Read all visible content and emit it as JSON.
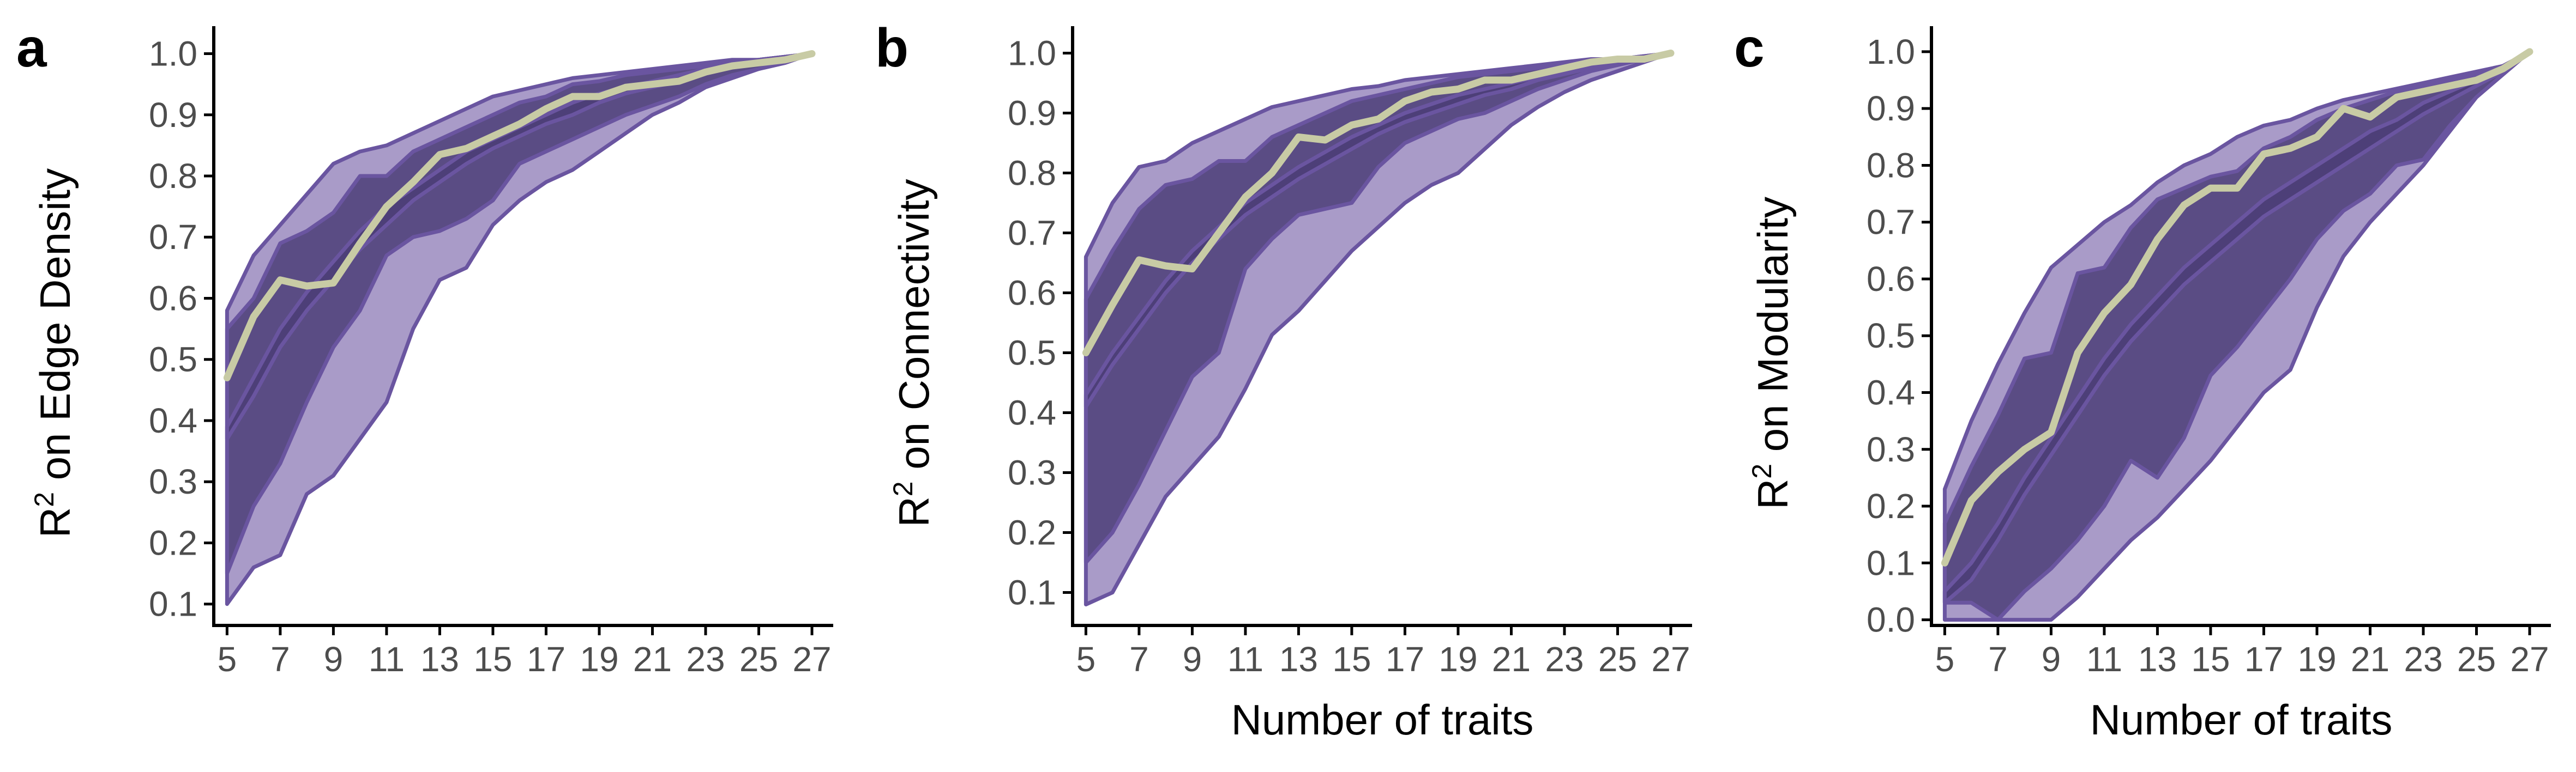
{
  "colors": {
    "outer_band": "#A99BC8",
    "inner_band": "#5A4C84",
    "center_band": "#4D3F78",
    "band_outline": "#6A55A0",
    "median_line": "#C8CBA5",
    "axis": "#000000",
    "tick_text": "#4d4d4d"
  },
  "chart_data": [
    {
      "panel_label": "a",
      "type": "area",
      "xlabel": "",
      "ylabel": "on Edge Density",
      "ylabel_prefix": "R",
      "ylabel_sup": "2",
      "xlim": [
        4.5,
        27.8
      ],
      "ylim": [
        0.065,
        1.045
      ],
      "x_ticks": [
        5,
        7,
        9,
        11,
        13,
        15,
        17,
        19,
        21,
        23,
        25,
        27
      ],
      "x_tick_labels": [
        "5",
        "7",
        "9",
        "11",
        "13",
        "15",
        "17",
        "19",
        "21",
        "23",
        "25",
        "27"
      ],
      "y_ticks": [
        0.1,
        0.2,
        0.3,
        0.4,
        0.5,
        0.6,
        0.7,
        0.8,
        0.9,
        1.0
      ],
      "y_tick_labels": [
        "0.1",
        "0.2",
        "0.3",
        "0.4",
        "0.5",
        "0.6",
        "0.7",
        "0.8",
        "0.9",
        "1.0"
      ],
      "x": [
        5,
        6,
        7,
        8,
        9,
        10,
        11,
        12,
        13,
        14,
        15,
        16,
        17,
        18,
        19,
        20,
        21,
        22,
        23,
        24,
        25,
        26,
        27
      ],
      "bands": [
        {
          "role": "outer",
          "upper": [
            0.58,
            0.67,
            0.72,
            0.77,
            0.82,
            0.84,
            0.85,
            0.87,
            0.89,
            0.91,
            0.93,
            0.94,
            0.95,
            0.96,
            0.965,
            0.97,
            0.975,
            0.98,
            0.985,
            0.99,
            0.99,
            0.995,
            1.0
          ],
          "lower": [
            0.1,
            0.16,
            0.18,
            0.28,
            0.31,
            0.37,
            0.43,
            0.55,
            0.63,
            0.65,
            0.72,
            0.76,
            0.79,
            0.81,
            0.84,
            0.87,
            0.9,
            0.92,
            0.945,
            0.96,
            0.975,
            0.985,
            1.0
          ]
        },
        {
          "role": "inner",
          "upper": [
            0.55,
            0.6,
            0.69,
            0.71,
            0.74,
            0.8,
            0.8,
            0.84,
            0.86,
            0.88,
            0.9,
            0.92,
            0.93,
            0.95,
            0.955,
            0.965,
            0.97,
            0.975,
            0.98,
            0.985,
            0.99,
            0.995,
            1.0
          ],
          "lower": [
            0.15,
            0.26,
            0.33,
            0.43,
            0.52,
            0.58,
            0.67,
            0.7,
            0.71,
            0.73,
            0.76,
            0.82,
            0.84,
            0.86,
            0.88,
            0.9,
            0.915,
            0.93,
            0.95,
            0.965,
            0.975,
            0.985,
            1.0
          ]
        },
        {
          "role": "center",
          "upper": [
            0.39,
            0.47,
            0.55,
            0.61,
            0.66,
            0.71,
            0.75,
            0.78,
            0.81,
            0.84,
            0.86,
            0.88,
            0.9,
            0.92,
            0.935,
            0.945,
            0.955,
            0.965,
            0.975,
            0.985,
            0.99,
            0.995,
            1.0
          ],
          "lower": [
            0.37,
            0.44,
            0.52,
            0.58,
            0.63,
            0.68,
            0.72,
            0.76,
            0.79,
            0.82,
            0.845,
            0.865,
            0.885,
            0.9,
            0.92,
            0.935,
            0.945,
            0.955,
            0.97,
            0.98,
            0.985,
            0.99,
            1.0
          ]
        }
      ],
      "median": [
        0.47,
        0.57,
        0.63,
        0.62,
        0.625,
        0.69,
        0.75,
        0.79,
        0.835,
        0.845,
        0.865,
        0.885,
        0.91,
        0.93,
        0.93,
        0.945,
        0.95,
        0.955,
        0.97,
        0.98,
        0.985,
        0.99,
        1.0
      ]
    },
    {
      "panel_label": "b",
      "type": "area",
      "xlabel": "Number of traits",
      "ylabel": "on Connectivity",
      "ylabel_prefix": "R",
      "ylabel_sup": "2",
      "xlim": [
        4.5,
        27.8
      ],
      "ylim": [
        0.045,
        1.045
      ],
      "x_ticks": [
        5,
        7,
        9,
        11,
        13,
        15,
        17,
        19,
        21,
        23,
        25,
        27
      ],
      "x_tick_labels": [
        "5",
        "7",
        "9",
        "11",
        "13",
        "15",
        "17",
        "19",
        "21",
        "23",
        "25",
        "27"
      ],
      "y_ticks": [
        0.1,
        0.2,
        0.3,
        0.4,
        0.5,
        0.6,
        0.7,
        0.8,
        0.9,
        1.0
      ],
      "y_tick_labels": [
        "0.1",
        "0.2",
        "0.3",
        "0.4",
        "0.5",
        "0.6",
        "0.7",
        "0.8",
        "0.9",
        "1.0"
      ],
      "x": [
        5,
        6,
        7,
        8,
        9,
        10,
        11,
        12,
        13,
        14,
        15,
        16,
        17,
        18,
        19,
        20,
        21,
        22,
        23,
        24,
        25,
        26,
        27
      ],
      "bands": [
        {
          "role": "outer",
          "upper": [
            0.66,
            0.75,
            0.81,
            0.82,
            0.85,
            0.87,
            0.89,
            0.91,
            0.92,
            0.93,
            0.94,
            0.945,
            0.955,
            0.96,
            0.965,
            0.97,
            0.975,
            0.98,
            0.985,
            0.99,
            0.99,
            0.995,
            1.0
          ],
          "lower": [
            0.08,
            0.1,
            0.18,
            0.26,
            0.31,
            0.36,
            0.44,
            0.53,
            0.57,
            0.62,
            0.67,
            0.71,
            0.75,
            0.78,
            0.8,
            0.84,
            0.88,
            0.91,
            0.935,
            0.955,
            0.97,
            0.985,
            1.0
          ]
        },
        {
          "role": "inner",
          "upper": [
            0.59,
            0.67,
            0.74,
            0.78,
            0.79,
            0.82,
            0.82,
            0.86,
            0.88,
            0.9,
            0.92,
            0.93,
            0.94,
            0.95,
            0.96,
            0.965,
            0.97,
            0.975,
            0.98,
            0.985,
            0.99,
            0.995,
            1.0
          ],
          "lower": [
            0.15,
            0.2,
            0.28,
            0.37,
            0.46,
            0.5,
            0.64,
            0.69,
            0.73,
            0.74,
            0.75,
            0.81,
            0.85,
            0.87,
            0.89,
            0.9,
            0.92,
            0.94,
            0.955,
            0.97,
            0.98,
            0.99,
            1.0
          ]
        },
        {
          "role": "center",
          "upper": [
            0.43,
            0.5,
            0.56,
            0.62,
            0.67,
            0.71,
            0.75,
            0.78,
            0.81,
            0.835,
            0.86,
            0.88,
            0.9,
            0.915,
            0.93,
            0.94,
            0.95,
            0.96,
            0.97,
            0.98,
            0.985,
            0.99,
            1.0
          ],
          "lower": [
            0.41,
            0.48,
            0.54,
            0.6,
            0.65,
            0.69,
            0.73,
            0.76,
            0.79,
            0.815,
            0.84,
            0.865,
            0.885,
            0.9,
            0.915,
            0.93,
            0.94,
            0.955,
            0.965,
            0.975,
            0.985,
            0.99,
            1.0
          ]
        }
      ],
      "median": [
        0.5,
        0.58,
        0.655,
        0.645,
        0.64,
        0.7,
        0.76,
        0.8,
        0.86,
        0.855,
        0.88,
        0.89,
        0.92,
        0.935,
        0.94,
        0.955,
        0.955,
        0.965,
        0.975,
        0.985,
        0.99,
        0.99,
        1.0
      ]
    },
    {
      "panel_label": "c",
      "type": "area",
      "xlabel": "Number of traits",
      "ylabel": "on Modularity",
      "ylabel_prefix": "R",
      "ylabel_sup": "2",
      "xlim": [
        4.5,
        27.8
      ],
      "ylim": [
        -0.01,
        1.045
      ],
      "x_ticks": [
        5,
        7,
        9,
        11,
        13,
        15,
        17,
        19,
        21,
        23,
        25,
        27
      ],
      "x_tick_labels": [
        "5",
        "7",
        "9",
        "11",
        "13",
        "15",
        "17",
        "19",
        "21",
        "23",
        "25",
        "27"
      ],
      "y_ticks": [
        0.0,
        0.1,
        0.2,
        0.3,
        0.4,
        0.5,
        0.6,
        0.7,
        0.8,
        0.9,
        1.0
      ],
      "y_tick_labels": [
        "0.0",
        "0.1",
        "0.2",
        "0.3",
        "0.4",
        "0.5",
        "0.6",
        "0.7",
        "0.8",
        "0.9",
        "1.0"
      ],
      "x": [
        5,
        6,
        7,
        8,
        9,
        10,
        11,
        12,
        13,
        14,
        15,
        16,
        17,
        18,
        19,
        20,
        21,
        22,
        23,
        24,
        25,
        26,
        27
      ],
      "bands": [
        {
          "role": "outer",
          "upper": [
            0.23,
            0.35,
            0.45,
            0.54,
            0.62,
            0.66,
            0.7,
            0.73,
            0.77,
            0.8,
            0.82,
            0.85,
            0.87,
            0.88,
            0.9,
            0.915,
            0.925,
            0.935,
            0.945,
            0.955,
            0.965,
            0.975,
            1.0
          ],
          "lower": [
            0.0,
            0.0,
            0.0,
            0.0,
            0.0,
            0.04,
            0.09,
            0.14,
            0.18,
            0.23,
            0.28,
            0.34,
            0.4,
            0.44,
            0.55,
            0.64,
            0.7,
            0.75,
            0.8,
            0.86,
            0.92,
            0.96,
            1.0
          ]
        },
        {
          "role": "inner",
          "upper": [
            0.17,
            0.27,
            0.36,
            0.46,
            0.47,
            0.61,
            0.62,
            0.69,
            0.74,
            0.76,
            0.78,
            0.79,
            0.83,
            0.85,
            0.88,
            0.9,
            0.915,
            0.93,
            0.94,
            0.95,
            0.96,
            0.975,
            1.0
          ],
          "lower": [
            0.03,
            0.03,
            0.0,
            0.05,
            0.09,
            0.14,
            0.2,
            0.28,
            0.25,
            0.32,
            0.43,
            0.48,
            0.54,
            0.6,
            0.67,
            0.72,
            0.75,
            0.8,
            0.81,
            0.87,
            0.92,
            0.96,
            1.0
          ]
        },
        {
          "role": "center",
          "upper": [
            0.05,
            0.1,
            0.17,
            0.25,
            0.32,
            0.39,
            0.46,
            0.52,
            0.57,
            0.62,
            0.66,
            0.7,
            0.74,
            0.77,
            0.8,
            0.83,
            0.86,
            0.88,
            0.91,
            0.93,
            0.95,
            0.97,
            1.0
          ],
          "lower": [
            0.03,
            0.07,
            0.14,
            0.22,
            0.29,
            0.36,
            0.43,
            0.49,
            0.54,
            0.59,
            0.63,
            0.67,
            0.71,
            0.74,
            0.77,
            0.8,
            0.83,
            0.86,
            0.89,
            0.915,
            0.94,
            0.965,
            1.0
          ]
        }
      ],
      "median": [
        0.1,
        0.21,
        0.26,
        0.3,
        0.33,
        0.47,
        0.54,
        0.59,
        0.67,
        0.73,
        0.76,
        0.76,
        0.82,
        0.83,
        0.85,
        0.9,
        0.885,
        0.92,
        0.93,
        0.94,
        0.95,
        0.97,
        1.0
      ]
    }
  ]
}
